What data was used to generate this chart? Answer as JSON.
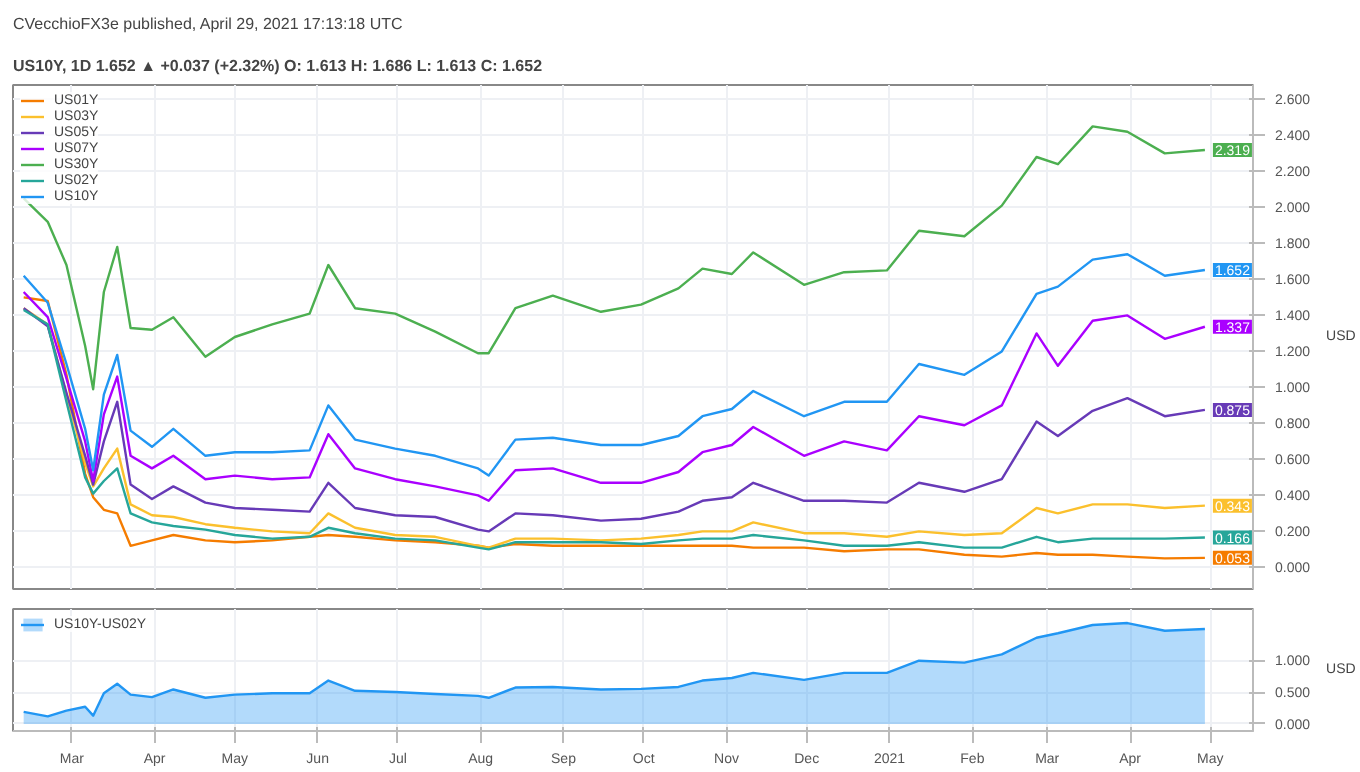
{
  "chart_data": [
    {
      "type": "line",
      "title": "CVecchioFX3e published, April 29, 2021 17:13:18 UTC",
      "subtitle": "US10Y, 1D 1.652 ▲ +0.037 (+2.32%) O: 1.613 H: 1.686 L: 1.613 C: 1.652",
      "ylabel": "USD",
      "x": [
        "2020-02-12",
        "2020-02-21",
        "2020-02-28",
        "2020-03-06",
        "2020-03-09",
        "2020-03-13",
        "2020-03-18",
        "2020-03-23",
        "2020-03-31",
        "2020-04-08",
        "2020-04-20",
        "2020-05-01",
        "2020-05-15",
        "2020-05-29",
        "2020-06-05",
        "2020-06-15",
        "2020-06-30",
        "2020-07-15",
        "2020-07-31",
        "2020-08-04",
        "2020-08-14",
        "2020-08-28",
        "2020-09-15",
        "2020-09-30",
        "2020-10-14",
        "2020-10-23",
        "2020-11-03",
        "2020-11-11",
        "2020-11-30",
        "2020-12-15",
        "2020-12-31",
        "2021-01-12",
        "2021-01-29",
        "2021-02-12",
        "2021-02-25",
        "2021-03-05",
        "2021-03-18",
        "2021-03-31",
        "2021-04-14",
        "2021-04-29"
      ],
      "series": [
        {
          "name": "US01Y",
          "color": "#f57c00",
          "values": [
            1.5,
            1.48,
            1.07,
            0.52,
            0.39,
            0.32,
            0.3,
            0.12,
            0.15,
            0.18,
            0.15,
            0.14,
            0.15,
            0.17,
            0.18,
            0.17,
            0.15,
            0.14,
            0.12,
            0.11,
            0.13,
            0.12,
            0.12,
            0.12,
            0.12,
            0.12,
            0.12,
            0.11,
            0.11,
            0.09,
            0.1,
            0.1,
            0.07,
            0.06,
            0.08,
            0.07,
            0.07,
            0.06,
            0.05,
            0.053
          ],
          "value_labels": [
            null,
            null,
            null,
            null,
            null,
            null,
            null,
            null,
            null,
            null,
            null,
            null,
            null,
            null,
            null,
            null,
            null,
            null,
            null,
            null,
            null,
            null,
            null,
            null,
            null,
            null,
            null,
            null,
            null,
            null,
            null,
            null,
            null,
            null,
            null,
            null,
            null,
            null,
            null,
            "0.053"
          ]
        },
        {
          "name": "US03Y",
          "color": "#fbc02d",
          "values": [
            1.44,
            1.35,
            0.96,
            0.58,
            0.45,
            0.55,
            0.66,
            0.35,
            0.29,
            0.28,
            0.24,
            0.22,
            0.2,
            0.19,
            0.3,
            0.22,
            0.18,
            0.17,
            0.12,
            0.11,
            0.16,
            0.16,
            0.15,
            0.16,
            0.18,
            0.2,
            0.2,
            0.25,
            0.19,
            0.19,
            0.17,
            0.2,
            0.18,
            0.19,
            0.33,
            0.3,
            0.35,
            0.35,
            0.33,
            0.343
          ],
          "value_labels": [
            null,
            null,
            null,
            null,
            null,
            null,
            null,
            null,
            null,
            null,
            null,
            null,
            null,
            null,
            null,
            null,
            null,
            null,
            null,
            null,
            null,
            null,
            null,
            null,
            null,
            null,
            null,
            null,
            null,
            null,
            null,
            null,
            null,
            null,
            null,
            null,
            null,
            null,
            null,
            "0.343"
          ]
        },
        {
          "name": "US05Y",
          "color": "#673ab7",
          "values": [
            1.44,
            1.34,
            0.97,
            0.62,
            0.46,
            0.7,
            0.92,
            0.46,
            0.38,
            0.45,
            0.36,
            0.33,
            0.32,
            0.31,
            0.47,
            0.33,
            0.29,
            0.28,
            0.21,
            0.2,
            0.3,
            0.29,
            0.26,
            0.27,
            0.31,
            0.37,
            0.39,
            0.47,
            0.37,
            0.37,
            0.36,
            0.47,
            0.42,
            0.49,
            0.81,
            0.73,
            0.87,
            0.94,
            0.84,
            0.875
          ],
          "value_labels": [
            null,
            null,
            null,
            null,
            null,
            null,
            null,
            null,
            null,
            null,
            null,
            null,
            null,
            null,
            null,
            null,
            null,
            null,
            null,
            null,
            null,
            null,
            null,
            null,
            null,
            null,
            null,
            null,
            null,
            null,
            null,
            null,
            null,
            null,
            null,
            null,
            null,
            null,
            null,
            "0.875"
          ]
        },
        {
          "name": "US07Y",
          "color": "#aa00ff",
          "values": [
            1.53,
            1.39,
            1.05,
            0.7,
            0.48,
            0.85,
            1.06,
            0.62,
            0.55,
            0.62,
            0.49,
            0.51,
            0.49,
            0.5,
            0.74,
            0.55,
            0.49,
            0.45,
            0.4,
            0.37,
            0.54,
            0.55,
            0.47,
            0.47,
            0.53,
            0.64,
            0.68,
            0.78,
            0.62,
            0.7,
            0.65,
            0.84,
            0.79,
            0.9,
            1.3,
            1.12,
            1.37,
            1.4,
            1.27,
            1.337
          ],
          "value_labels": [
            null,
            null,
            null,
            null,
            null,
            null,
            null,
            null,
            null,
            null,
            null,
            null,
            null,
            null,
            null,
            null,
            null,
            null,
            null,
            null,
            null,
            null,
            null,
            null,
            null,
            null,
            null,
            null,
            null,
            null,
            null,
            null,
            null,
            null,
            null,
            null,
            null,
            null,
            null,
            "1.337"
          ]
        },
        {
          "name": "US30Y",
          "color": "#4caf50",
          "values": [
            2.05,
            1.92,
            1.68,
            1.23,
            0.99,
            1.53,
            1.78,
            1.33,
            1.32,
            1.39,
            1.17,
            1.28,
            1.35,
            1.41,
            1.68,
            1.44,
            1.41,
            1.31,
            1.19,
            1.19,
            1.44,
            1.51,
            1.42,
            1.46,
            1.55,
            1.66,
            1.63,
            1.75,
            1.57,
            1.64,
            1.65,
            1.87,
            1.84,
            2.01,
            2.28,
            2.24,
            2.45,
            2.42,
            2.3,
            2.319
          ],
          "value_labels": [
            null,
            null,
            null,
            null,
            null,
            null,
            null,
            null,
            null,
            null,
            null,
            null,
            null,
            null,
            null,
            null,
            null,
            null,
            null,
            null,
            null,
            null,
            null,
            null,
            null,
            null,
            null,
            null,
            null,
            null,
            null,
            null,
            null,
            null,
            null,
            null,
            null,
            null,
            null,
            "2.319"
          ]
        },
        {
          "name": "US02Y",
          "color": "#26a69a",
          "values": [
            1.43,
            1.35,
            0.92,
            0.5,
            0.41,
            0.48,
            0.55,
            0.3,
            0.25,
            0.23,
            0.21,
            0.18,
            0.16,
            0.17,
            0.22,
            0.19,
            0.16,
            0.15,
            0.11,
            0.1,
            0.14,
            0.14,
            0.14,
            0.13,
            0.15,
            0.16,
            0.16,
            0.18,
            0.15,
            0.12,
            0.12,
            0.14,
            0.11,
            0.11,
            0.17,
            0.14,
            0.16,
            0.16,
            0.16,
            0.166
          ],
          "value_labels": [
            null,
            null,
            null,
            null,
            null,
            null,
            null,
            null,
            null,
            null,
            null,
            null,
            null,
            null,
            null,
            null,
            null,
            null,
            null,
            null,
            null,
            null,
            null,
            null,
            null,
            null,
            null,
            null,
            null,
            null,
            null,
            null,
            null,
            null,
            null,
            null,
            null,
            null,
            null,
            "0.166"
          ]
        },
        {
          "name": "US10Y",
          "color": "#2196f3",
          "values": [
            1.62,
            1.47,
            1.13,
            0.77,
            0.54,
            0.96,
            1.18,
            0.76,
            0.67,
            0.77,
            0.62,
            0.64,
            0.64,
            0.65,
            0.9,
            0.71,
            0.66,
            0.62,
            0.55,
            0.51,
            0.71,
            0.72,
            0.68,
            0.68,
            0.73,
            0.84,
            0.88,
            0.98,
            0.84,
            0.92,
            0.92,
            1.13,
            1.07,
            1.2,
            1.52,
            1.56,
            1.71,
            1.74,
            1.62,
            1.652
          ],
          "value_labels": [
            null,
            null,
            null,
            null,
            null,
            null,
            null,
            null,
            null,
            null,
            null,
            null,
            null,
            null,
            null,
            null,
            null,
            null,
            null,
            null,
            null,
            null,
            null,
            null,
            null,
            null,
            null,
            null,
            null,
            null,
            null,
            null,
            null,
            null,
            null,
            null,
            null,
            null,
            null,
            "1.652"
          ]
        }
      ],
      "xlim": [
        "2020-02-08",
        "2021-05-17"
      ],
      "xticks": [
        {
          "value": "2020-03-01",
          "label": null
        },
        {
          "value": "2020-04-01",
          "label": null
        },
        {
          "value": "2020-05-01",
          "label": null
        },
        {
          "value": "2020-06-01",
          "label": null
        },
        {
          "value": "2020-07-01",
          "label": null
        },
        {
          "value": "2020-08-01",
          "label": null
        },
        {
          "value": "2020-09-01",
          "label": null
        },
        {
          "value": "2020-10-01",
          "label": null
        },
        {
          "value": "2020-11-01",
          "label": null
        },
        {
          "value": "2020-12-01",
          "label": null
        },
        {
          "value": "2021-01-01",
          "label": null
        },
        {
          "value": "2021-02-01",
          "label": null
        },
        {
          "value": "2021-03-01",
          "label": null
        },
        {
          "value": "2021-04-01",
          "label": null
        },
        {
          "value": "2021-05-01",
          "label": null
        }
      ],
      "ylim": [
        -0.12,
        2.68
      ],
      "yticks": [
        {
          "value": 0,
          "label": "0.000"
        },
        {
          "value": 0.2,
          "label": "0.200"
        },
        {
          "value": 0.4,
          "label": "0.400"
        },
        {
          "value": 0.6,
          "label": "0.600"
        },
        {
          "value": 0.8,
          "label": "0.800"
        },
        {
          "value": 1.0,
          "label": "1.000"
        },
        {
          "value": 1.2,
          "label": "1.200"
        },
        {
          "value": 1.4,
          "label": "1.400"
        },
        {
          "value": 1.6,
          "label": "1.600"
        },
        {
          "value": 1.8,
          "label": "1.800"
        },
        {
          "value": 2.0,
          "label": "2.000"
        },
        {
          "value": 2.2,
          "label": "2.200"
        },
        {
          "value": 2.4,
          "label": "2.400"
        },
        {
          "value": 2.6,
          "label": "2.600"
        }
      ],
      "tick_labels": "y",
      "grid": true,
      "legend": "top left",
      "line_style": "solid"
    },
    {
      "type": "area",
      "ylabel": "USD",
      "x": [
        "2020-02-12",
        "2020-02-21",
        "2020-02-28",
        "2020-03-06",
        "2020-03-09",
        "2020-03-13",
        "2020-03-18",
        "2020-03-23",
        "2020-03-31",
        "2020-04-08",
        "2020-04-20",
        "2020-05-01",
        "2020-05-15",
        "2020-05-29",
        "2020-06-05",
        "2020-06-15",
        "2020-06-30",
        "2020-07-15",
        "2020-07-31",
        "2020-08-04",
        "2020-08-14",
        "2020-08-28",
        "2020-09-15",
        "2020-09-30",
        "2020-10-14",
        "2020-10-23",
        "2020-11-03",
        "2020-11-11",
        "2020-11-30",
        "2020-12-15",
        "2020-12-31",
        "2021-01-12",
        "2021-01-29",
        "2021-02-12",
        "2021-02-25",
        "2021-03-05",
        "2021-03-18",
        "2021-03-31",
        "2021-04-14",
        "2021-04-29"
      ],
      "series": [
        {
          "name": "US10Y-US02Y",
          "color": "#2196f3",
          "values": [
            0.19,
            0.12,
            0.21,
            0.27,
            0.13,
            0.48,
            0.63,
            0.46,
            0.42,
            0.54,
            0.41,
            0.46,
            0.48,
            0.48,
            0.68,
            0.52,
            0.5,
            0.47,
            0.44,
            0.41,
            0.57,
            0.58,
            0.54,
            0.55,
            0.58,
            0.68,
            0.72,
            0.8,
            0.69,
            0.8,
            0.8,
            0.99,
            0.96,
            1.09,
            1.35,
            1.42,
            1.55,
            1.58,
            1.46,
            1.486
          ]
        }
      ],
      "xlim": [
        "2020-02-08",
        "2021-05-17"
      ],
      "xticks": [
        {
          "value": "2020-03-01",
          "label": "Mar"
        },
        {
          "value": "2020-04-01",
          "label": "Apr"
        },
        {
          "value": "2020-05-01",
          "label": "May"
        },
        {
          "value": "2020-06-01",
          "label": "Jun"
        },
        {
          "value": "2020-07-01",
          "label": "Jul"
        },
        {
          "value": "2020-08-01",
          "label": "Aug"
        },
        {
          "value": "2020-09-01",
          "label": "Sep"
        },
        {
          "value": "2020-10-01",
          "label": "Oct"
        },
        {
          "value": "2020-11-01",
          "label": "Nov"
        },
        {
          "value": "2020-12-01",
          "label": "Dec"
        },
        {
          "value": "2021-01-01",
          "label": "2021"
        },
        {
          "value": "2021-02-01",
          "label": "Feb"
        },
        {
          "value": "2021-03-01",
          "label": "Mar"
        },
        {
          "value": "2021-04-01",
          "label": "Apr"
        },
        {
          "value": "2021-05-01",
          "label": "May"
        }
      ],
      "ylim": [
        -0.11,
        1.8
      ],
      "yticks": [
        {
          "value": 0,
          "label": "0.000"
        },
        {
          "value": 0.5,
          "label": "0.500"
        },
        {
          "value": 1.0,
          "label": "1.000"
        }
      ],
      "grid": true,
      "legend": "top left",
      "line_style": "solid"
    }
  ]
}
